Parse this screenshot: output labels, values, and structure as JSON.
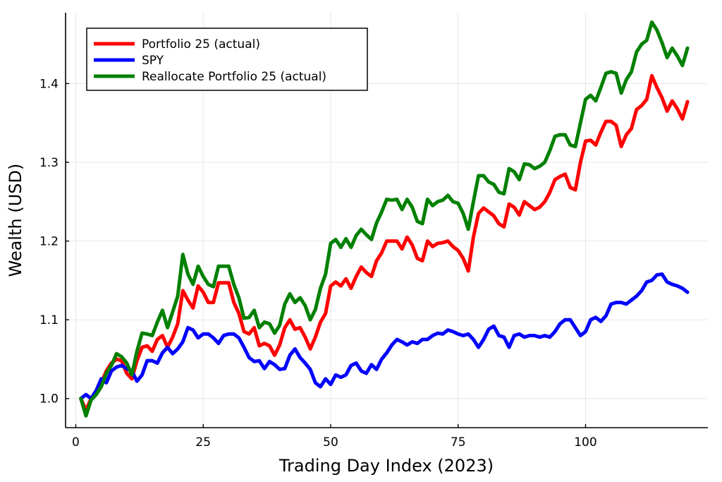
{
  "chart_data": {
    "type": "line",
    "title": "",
    "xlabel": "Trading Day Index (2023)",
    "ylabel": "Wealth (USD)",
    "xlim": [
      -2,
      124
    ],
    "ylim": [
      0.963,
      1.49
    ],
    "xticks": [
      0,
      25,
      50,
      75,
      100
    ],
    "xtick_labels": [
      "0",
      "25",
      "50",
      "75",
      "100"
    ],
    "yticks": [
      1.0,
      1.1,
      1.2,
      1.3,
      1.4
    ],
    "ytick_labels": [
      "1.0",
      "1.1",
      "1.2",
      "1.3",
      "1.4"
    ],
    "grid": true,
    "legend_position": "top-left",
    "series": [
      {
        "name": "Portfolio 25 (actual)",
        "color": "#ff0000",
        "x": [
          1,
          2,
          3,
          4,
          5,
          6,
          7,
          8,
          9,
          10,
          11,
          12,
          13,
          14,
          15,
          16,
          17,
          18,
          19,
          20,
          21,
          22,
          23,
          24,
          25,
          26,
          27,
          28,
          29,
          30,
          31,
          32,
          33,
          34,
          35,
          36,
          37,
          38,
          39,
          40,
          41,
          42,
          43,
          44,
          45,
          46,
          47,
          48,
          49,
          50,
          51,
          52,
          53,
          54,
          55,
          56,
          57,
          58,
          59,
          60,
          61,
          62,
          63,
          64,
          65,
          66,
          67,
          68,
          69,
          70,
          71,
          72,
          73,
          74,
          75,
          76,
          77,
          78,
          79,
          80,
          81,
          82,
          83,
          84,
          85,
          86,
          87,
          88,
          89,
          90,
          91,
          92,
          93,
          94,
          95,
          96,
          97,
          98,
          99,
          100,
          101,
          102,
          103,
          104,
          105,
          106,
          107,
          108,
          109,
          110,
          111,
          112,
          113,
          114,
          115,
          116,
          117,
          118,
          119,
          120
        ],
        "values": [
          1.0,
          0.985,
          1.0,
          1.01,
          1.02,
          1.035,
          1.045,
          1.05,
          1.048,
          1.032,
          1.025,
          1.048,
          1.065,
          1.067,
          1.06,
          1.075,
          1.08,
          1.065,
          1.078,
          1.095,
          1.137,
          1.125,
          1.115,
          1.143,
          1.135,
          1.122,
          1.122,
          1.147,
          1.147,
          1.147,
          1.122,
          1.108,
          1.085,
          1.082,
          1.09,
          1.067,
          1.07,
          1.067,
          1.055,
          1.068,
          1.09,
          1.1,
          1.088,
          1.09,
          1.078,
          1.063,
          1.078,
          1.097,
          1.108,
          1.143,
          1.148,
          1.143,
          1.152,
          1.14,
          1.155,
          1.167,
          1.16,
          1.155,
          1.175,
          1.185,
          1.2,
          1.2,
          1.2,
          1.19,
          1.205,
          1.195,
          1.178,
          1.175,
          1.2,
          1.193,
          1.197,
          1.198,
          1.2,
          1.193,
          1.188,
          1.178,
          1.162,
          1.205,
          1.235,
          1.242,
          1.237,
          1.232,
          1.222,
          1.218,
          1.247,
          1.243,
          1.233,
          1.25,
          1.245,
          1.24,
          1.243,
          1.25,
          1.262,
          1.278,
          1.282,
          1.285,
          1.268,
          1.265,
          1.3,
          1.327,
          1.328,
          1.322,
          1.338,
          1.352,
          1.352,
          1.347,
          1.32,
          1.335,
          1.343,
          1.367,
          1.372,
          1.38,
          1.41,
          1.395,
          1.382,
          1.365,
          1.378,
          1.368,
          1.355,
          1.377
        ]
      },
      {
        "name": "SPY",
        "color": "#0000ff",
        "x": [
          1,
          2,
          3,
          4,
          5,
          6,
          7,
          8,
          9,
          10,
          11,
          12,
          13,
          14,
          15,
          16,
          17,
          18,
          19,
          20,
          21,
          22,
          23,
          24,
          25,
          26,
          27,
          28,
          29,
          30,
          31,
          32,
          33,
          34,
          35,
          36,
          37,
          38,
          39,
          40,
          41,
          42,
          43,
          44,
          45,
          46,
          47,
          48,
          49,
          50,
          51,
          52,
          53,
          54,
          55,
          56,
          57,
          58,
          59,
          60,
          61,
          62,
          63,
          64,
          65,
          66,
          67,
          68,
          69,
          70,
          71,
          72,
          73,
          74,
          75,
          76,
          77,
          78,
          79,
          80,
          81,
          82,
          83,
          84,
          85,
          86,
          87,
          88,
          89,
          90,
          91,
          92,
          93,
          94,
          95,
          96,
          97,
          98,
          99,
          100,
          101,
          102,
          103,
          104,
          105,
          106,
          107,
          108,
          109,
          110,
          111,
          112,
          113,
          114,
          115,
          116,
          117,
          118,
          119,
          120
        ],
        "values": [
          1.0,
          1.005,
          1.0,
          1.01,
          1.025,
          1.02,
          1.035,
          1.04,
          1.042,
          1.038,
          1.035,
          1.022,
          1.03,
          1.048,
          1.048,
          1.045,
          1.058,
          1.065,
          1.057,
          1.063,
          1.072,
          1.09,
          1.087,
          1.077,
          1.082,
          1.082,
          1.077,
          1.07,
          1.08,
          1.082,
          1.082,
          1.077,
          1.065,
          1.052,
          1.047,
          1.048,
          1.038,
          1.047,
          1.043,
          1.037,
          1.038,
          1.055,
          1.063,
          1.052,
          1.045,
          1.037,
          1.02,
          1.015,
          1.025,
          1.018,
          1.03,
          1.027,
          1.03,
          1.042,
          1.045,
          1.035,
          1.032,
          1.043,
          1.037,
          1.05,
          1.058,
          1.068,
          1.075,
          1.072,
          1.068,
          1.072,
          1.07,
          1.075,
          1.075,
          1.08,
          1.083,
          1.082,
          1.087,
          1.085,
          1.082,
          1.08,
          1.082,
          1.075,
          1.065,
          1.075,
          1.088,
          1.092,
          1.08,
          1.078,
          1.065,
          1.08,
          1.082,
          1.078,
          1.08,
          1.08,
          1.078,
          1.08,
          1.078,
          1.085,
          1.095,
          1.1,
          1.1,
          1.09,
          1.08,
          1.085,
          1.1,
          1.103,
          1.098,
          1.105,
          1.12,
          1.122,
          1.122,
          1.12,
          1.125,
          1.13,
          1.137,
          1.148,
          1.15,
          1.157,
          1.158,
          1.148,
          1.145,
          1.143,
          1.14,
          1.135
        ]
      },
      {
        "name": "Reallocate Portfolio 25 (actual)",
        "color": "#008000",
        "x": [
          1,
          2,
          3,
          4,
          5,
          6,
          7,
          8,
          9,
          10,
          11,
          12,
          13,
          14,
          15,
          16,
          17,
          18,
          19,
          20,
          21,
          22,
          23,
          24,
          25,
          26,
          27,
          28,
          29,
          30,
          31,
          32,
          33,
          34,
          35,
          36,
          37,
          38,
          39,
          40,
          41,
          42,
          43,
          44,
          45,
          46,
          47,
          48,
          49,
          50,
          51,
          52,
          53,
          54,
          55,
          56,
          57,
          58,
          59,
          60,
          61,
          62,
          63,
          64,
          65,
          66,
          67,
          68,
          69,
          70,
          71,
          72,
          73,
          74,
          75,
          76,
          77,
          78,
          79,
          80,
          81,
          82,
          83,
          84,
          85,
          86,
          87,
          88,
          89,
          90,
          91,
          92,
          93,
          94,
          95,
          96,
          97,
          98,
          99,
          100,
          101,
          102,
          103,
          104,
          105,
          106,
          107,
          108,
          109,
          110,
          111,
          112,
          113,
          114,
          115,
          116,
          117,
          118,
          119,
          120
        ],
        "values": [
          1.0,
          0.978,
          0.998,
          1.005,
          1.015,
          1.032,
          1.042,
          1.057,
          1.053,
          1.045,
          1.03,
          1.06,
          1.083,
          1.082,
          1.08,
          1.097,
          1.112,
          1.09,
          1.11,
          1.13,
          1.183,
          1.158,
          1.145,
          1.168,
          1.155,
          1.145,
          1.142,
          1.168,
          1.168,
          1.168,
          1.145,
          1.128,
          1.102,
          1.103,
          1.112,
          1.09,
          1.097,
          1.095,
          1.083,
          1.093,
          1.12,
          1.133,
          1.122,
          1.128,
          1.118,
          1.1,
          1.113,
          1.14,
          1.158,
          1.197,
          1.202,
          1.192,
          1.203,
          1.192,
          1.207,
          1.215,
          1.208,
          1.202,
          1.223,
          1.237,
          1.253,
          1.252,
          1.253,
          1.24,
          1.253,
          1.243,
          1.225,
          1.222,
          1.253,
          1.245,
          1.25,
          1.252,
          1.258,
          1.25,
          1.248,
          1.235,
          1.215,
          1.25,
          1.283,
          1.283,
          1.275,
          1.272,
          1.262,
          1.26,
          1.292,
          1.288,
          1.278,
          1.298,
          1.297,
          1.292,
          1.295,
          1.3,
          1.315,
          1.333,
          1.335,
          1.335,
          1.322,
          1.32,
          1.35,
          1.38,
          1.385,
          1.378,
          1.395,
          1.413,
          1.415,
          1.413,
          1.388,
          1.405,
          1.415,
          1.44,
          1.45,
          1.455,
          1.478,
          1.468,
          1.452,
          1.433,
          1.445,
          1.435,
          1.423,
          1.445
        ]
      }
    ]
  }
}
